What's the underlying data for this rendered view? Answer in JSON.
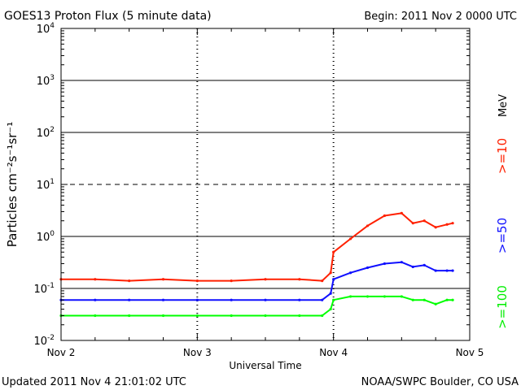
{
  "header": {
    "title": "GOES13 Proton Flux (5 minute data)",
    "begin": "Begin: 2011 Nov 2 0000 UTC"
  },
  "footer": {
    "updated": "Updated 2011 Nov  4 21:01:02 UTC",
    "credit": "NOAA/SWPC Boulder, CO USA"
  },
  "chart_data": {
    "type": "line",
    "title": "GOES13 Proton Flux (5 minute data)",
    "xlabel": "Universal Time",
    "ylabel": "Particles cm⁻²s⁻¹sr⁻¹",
    "yscale": "log",
    "ylim": [
      0.01,
      10000
    ],
    "xlim": [
      "Nov 2",
      "Nov 5"
    ],
    "x_tick_labels": [
      "Nov 2",
      "Nov 3",
      "Nov 4",
      "Nov 5"
    ],
    "y_tick_labels": [
      "10^-2",
      "10^-1",
      "10^0",
      "10^1",
      "10^2",
      "10^3",
      "10^4"
    ],
    "grid": "horizontal lines at decades; dashed at 10^1; dashed vertical day markers",
    "legend_units": "MeV",
    "series": [
      {
        "name": ">=10",
        "color": "#ff2000",
        "x": [
          "2011-11-02 00:00",
          "2011-11-02 06:00",
          "2011-11-02 12:00",
          "2011-11-02 18:00",
          "2011-11-03 00:00",
          "2011-11-03 06:00",
          "2011-11-03 12:00",
          "2011-11-03 18:00",
          "2011-11-03 22:00",
          "2011-11-03 23:30",
          "2011-11-04 00:00",
          "2011-11-04 03:00",
          "2011-11-04 06:00",
          "2011-11-04 09:00",
          "2011-11-04 12:00",
          "2011-11-04 14:00",
          "2011-11-04 16:00",
          "2011-11-04 18:00",
          "2011-11-04 20:00",
          "2011-11-04 21:00"
        ],
        "values": [
          0.15,
          0.15,
          0.14,
          0.15,
          0.14,
          0.14,
          0.15,
          0.15,
          0.14,
          0.2,
          0.5,
          0.9,
          1.6,
          2.5,
          2.8,
          1.8,
          2.0,
          1.5,
          1.7,
          1.8
        ]
      },
      {
        "name": ">=50",
        "color": "#1010ff",
        "x": [
          "2011-11-02 00:00",
          "2011-11-02 06:00",
          "2011-11-02 12:00",
          "2011-11-02 18:00",
          "2011-11-03 00:00",
          "2011-11-03 06:00",
          "2011-11-03 12:00",
          "2011-11-03 18:00",
          "2011-11-03 22:00",
          "2011-11-03 23:30",
          "2011-11-04 00:00",
          "2011-11-04 03:00",
          "2011-11-04 06:00",
          "2011-11-04 09:00",
          "2011-11-04 12:00",
          "2011-11-04 14:00",
          "2011-11-04 16:00",
          "2011-11-04 18:00",
          "2011-11-04 20:00",
          "2011-11-04 21:00"
        ],
        "values": [
          0.06,
          0.06,
          0.06,
          0.06,
          0.06,
          0.06,
          0.06,
          0.06,
          0.06,
          0.08,
          0.15,
          0.2,
          0.25,
          0.3,
          0.32,
          0.26,
          0.28,
          0.22,
          0.22,
          0.22
        ]
      },
      {
        "name": ">=100",
        "color": "#00ff00",
        "x": [
          "2011-11-02 00:00",
          "2011-11-02 06:00",
          "2011-11-02 12:00",
          "2011-11-02 18:00",
          "2011-11-03 00:00",
          "2011-11-03 06:00",
          "2011-11-03 12:00",
          "2011-11-03 18:00",
          "2011-11-03 22:00",
          "2011-11-03 23:30",
          "2011-11-04 00:00",
          "2011-11-04 03:00",
          "2011-11-04 06:00",
          "2011-11-04 09:00",
          "2011-11-04 12:00",
          "2011-11-04 14:00",
          "2011-11-04 16:00",
          "2011-11-04 18:00",
          "2011-11-04 20:00",
          "2011-11-04 21:00"
        ],
        "values": [
          0.03,
          0.03,
          0.03,
          0.03,
          0.03,
          0.03,
          0.03,
          0.03,
          0.03,
          0.04,
          0.06,
          0.07,
          0.07,
          0.07,
          0.07,
          0.06,
          0.06,
          0.05,
          0.06,
          0.06
        ]
      }
    ]
  }
}
